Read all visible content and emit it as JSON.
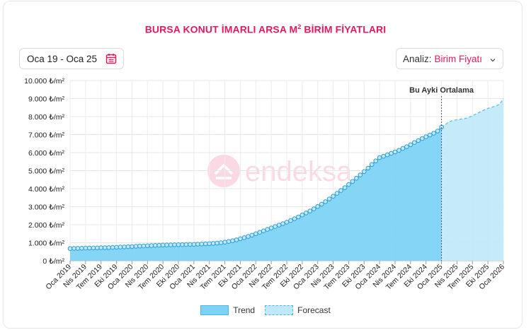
{
  "header": {
    "title": "BURSA KONUT İMARLI ARSA M",
    "title_sup": "2",
    "title_suffix": " BİRİM FİYATLARI"
  },
  "controls": {
    "date_range": "Oca 19 - Oca 25",
    "analysis_label": "Analiz:",
    "analysis_value": "Birim Fiyatı"
  },
  "icons": {
    "calendar": "calendar-icon",
    "chevron": "chevron-down-icon"
  },
  "colors": {
    "accent": "#e5195f",
    "trend_fill": "#7dd3f5",
    "trend_line": "#2a9fd8",
    "forecast_fill": "#bfe8fa"
  },
  "chart_data": {
    "type": "area",
    "annotation": "Bu Ayki Ortalama",
    "annotation_x": "Oca 2025",
    "ylim": [
      0,
      10000
    ],
    "y_ticks": [
      "0 ₺/m²",
      "1.000 ₺/m²",
      "2.000 ₺/m²",
      "3.000 ₺/m²",
      "4.000 ₺/m²",
      "5.000 ₺/m²",
      "6.000 ₺/m²",
      "7.000 ₺/m²",
      "8.000 ₺/m²",
      "9.000 ₺/m²",
      "10.000 ₺/m²"
    ],
    "x_ticks": [
      "Oca 2019",
      "Nis 2019",
      "Tem 2019",
      "Eki 2019",
      "Oca 2020",
      "Nis 2020",
      "Tem 2020",
      "Eki 2020",
      "Oca 2021",
      "Nis 2021",
      "Tem 2021",
      "Eki 2021",
      "Oca 2022",
      "Nis 2022",
      "Tem 2022",
      "Eki 2022",
      "Oca 2023",
      "Nis 2023",
      "Tem 2023",
      "Eki 2023",
      "Oca 2024",
      "Nis 2024",
      "Tem 2024",
      "Eki 2024",
      "Oca 2025",
      "Nis 2025",
      "Tem 2025",
      "Eki 2025",
      "Oca 2026"
    ],
    "grid": true,
    "legend": "bottom",
    "series": [
      {
        "name": "Trend",
        "x_start": "Oca 2019",
        "x_end": "Oca 2025",
        "values": [
          680,
          685,
          690,
          695,
          700,
          705,
          710,
          715,
          720,
          725,
          730,
          740,
          750,
          760,
          770,
          780,
          790,
          800,
          810,
          820,
          830,
          840,
          850,
          860,
          870,
          875,
          880,
          885,
          890,
          895,
          900,
          905,
          910,
          920,
          930,
          940,
          950,
          960,
          980,
          1000,
          1030,
          1070,
          1110,
          1160,
          1220,
          1280,
          1350,
          1420,
          1500,
          1580,
          1660,
          1740,
          1820,
          1900,
          1980,
          2060,
          2140,
          2230,
          2330,
          2430,
          2540,
          2650,
          2760,
          2880,
          3010,
          3140,
          3280,
          3430,
          3580,
          3740,
          3900,
          4060,
          4230,
          4400,
          4580,
          4760,
          4950,
          5140,
          5340,
          5540,
          5720,
          5800,
          5880,
          5960,
          6040,
          6130,
          6230,
          6330,
          6440,
          6560,
          6670,
          6780,
          6880,
          6980,
          7080,
          7200,
          7420
        ]
      },
      {
        "name": "Forecast",
        "x_start": "Oca 2025",
        "x_end": "Oca 2026",
        "values": [
          7420,
          7550,
          7700,
          7780,
          7820,
          7850,
          7880,
          7920,
          8000,
          8100,
          8200,
          8300,
          8400,
          8470,
          8530,
          8600,
          8700,
          9000
        ]
      }
    ]
  }
}
